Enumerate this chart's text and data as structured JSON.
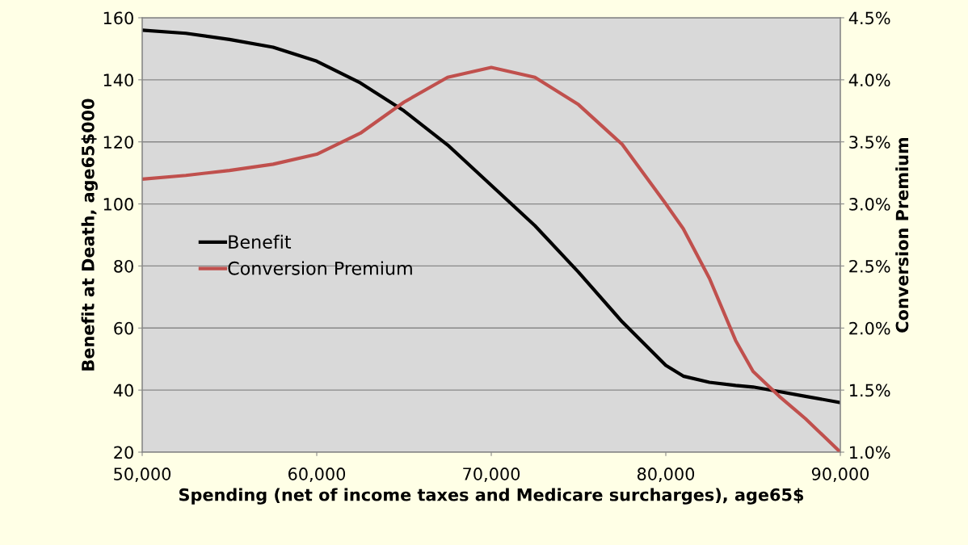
{
  "chart_data": {
    "type": "line",
    "xlabel": "Spending (net of income taxes and Medicare surcharges), age65$",
    "ylabel": "Benefit at Death, age65$000",
    "y2label": "Conversion Premium",
    "x": [
      50000,
      52500,
      55000,
      57500,
      60000,
      62500,
      65000,
      67500,
      70000,
      72500,
      75000,
      77500,
      80000,
      81000,
      82500,
      84000,
      85000,
      86500,
      88000,
      90000
    ],
    "series": [
      {
        "name": "Benefit",
        "color": "#000000",
        "values": [
          156,
          155,
          153,
          150.5,
          146,
          139,
          130,
          119,
          106,
          93,
          78,
          62,
          48,
          44.5,
          42.5,
          41.5,
          41,
          39.5,
          38,
          36
        ]
      },
      {
        "name": "Conversion Premium",
        "color": "#c0504d",
        "axis": "y2",
        "values": [
          3.2,
          3.23,
          3.27,
          3.32,
          3.4,
          3.57,
          3.82,
          4.02,
          4.1,
          4.02,
          3.8,
          3.48,
          3.0,
          2.8,
          2.4,
          1.9,
          1.65,
          1.45,
          1.27,
          1.0
        ]
      }
    ],
    "xlim": [
      50000,
      90000
    ],
    "xticks": [
      {
        "value": 50000,
        "label": "50,000"
      },
      {
        "value": 60000,
        "label": "60,000"
      },
      {
        "value": 70000,
        "label": "70,000"
      },
      {
        "value": 80000,
        "label": "80,000"
      },
      {
        "value": 90000,
        "label": "90,000"
      }
    ],
    "ylim": [
      20,
      160
    ],
    "yticks": [
      20,
      40,
      60,
      80,
      100,
      120,
      140,
      160
    ],
    "y2lim": [
      1.0,
      4.5
    ],
    "y2ticks": [
      {
        "value": 1.0,
        "label": "1.0%"
      },
      {
        "value": 1.5,
        "label": "1.5%"
      },
      {
        "value": 2.0,
        "label": "2.0%"
      },
      {
        "value": 2.5,
        "label": "2.5%"
      },
      {
        "value": 3.0,
        "label": "3.0%"
      },
      {
        "value": 3.5,
        "label": "3.5%"
      },
      {
        "value": 4.0,
        "label": "4.0%"
      },
      {
        "value": 4.5,
        "label": "4.5%"
      }
    ],
    "grid": "y",
    "legend": "left",
    "line_style": "solid",
    "marker": "none"
  }
}
